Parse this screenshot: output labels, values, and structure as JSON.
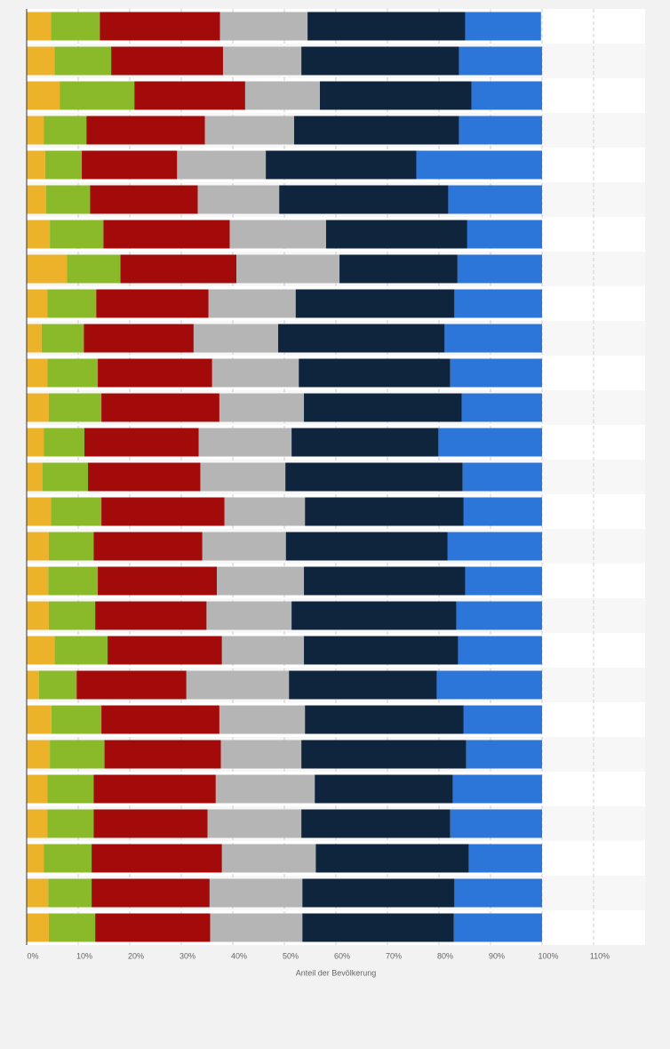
{
  "chart_data": {
    "type": "stacked-bar-horizontal",
    "x_label": "Anteil der Bevölkerung",
    "categories": [
      null,
      null,
      null,
      null,
      null,
      null,
      null,
      null,
      null,
      null,
      null,
      null,
      null,
      null,
      null,
      null,
      null,
      null,
      null,
      null,
      null,
      null,
      null,
      null,
      null,
      null,
      null
    ],
    "xlim": [
      0,
      120
    ],
    "xticks": [
      {
        "value": 0,
        "label": "0%"
      },
      {
        "value": 10,
        "label": "10%"
      },
      {
        "value": 20,
        "label": "20%"
      },
      {
        "value": 30,
        "label": "30%"
      },
      {
        "value": 40,
        "label": "40%"
      },
      {
        "value": 50,
        "label": "50%"
      },
      {
        "value": 60,
        "label": "60%"
      },
      {
        "value": 70,
        "label": "70%"
      },
      {
        "value": 80,
        "label": "80%"
      },
      {
        "value": 90,
        "label": "90%"
      },
      {
        "value": 100,
        "label": "100%"
      },
      {
        "value": 110,
        "label": "110%"
      }
    ],
    "grid": true,
    "series": [
      {
        "color": "#ecb32a",
        "values": [
          4.7,
          5.4,
          6.4,
          3.3,
          3.6,
          3.8,
          4.5,
          7.8,
          4.0,
          2.9,
          4.0,
          4.3,
          3.3,
          3.1,
          4.7,
          4.3,
          4.2,
          4.3,
          5.4,
          2.4,
          4.8,
          4.5,
          4.0,
          4.0,
          3.3,
          4.2,
          4.3
        ]
      },
      {
        "color": "#8aba2a",
        "values": [
          9.5,
          11.0,
          14.5,
          8.3,
          7.1,
          8.5,
          10.4,
          10.4,
          9.5,
          8.2,
          9.8,
          10.2,
          7.9,
          8.8,
          9.8,
          8.7,
          9.6,
          9.0,
          10.3,
          7.3,
          9.7,
          10.6,
          9.0,
          9.0,
          9.3,
          8.4,
          9.0
        ]
      },
      {
        "color": "#a30b0b",
        "values": [
          23.3,
          21.7,
          21.5,
          23.0,
          18.5,
          20.9,
          24.5,
          22.5,
          21.8,
          21.3,
          22.2,
          22.9,
          22.2,
          21.8,
          23.9,
          21.1,
          23.1,
          21.6,
          22.2,
          21.3,
          22.9,
          22.6,
          23.7,
          22.1,
          25.3,
          22.9,
          22.3
        ]
      },
      {
        "color": "#b5b5b5",
        "values": [
          17.0,
          15.2,
          14.5,
          17.3,
          17.2,
          15.8,
          18.7,
          20.0,
          16.9,
          16.4,
          16.8,
          16.4,
          18.0,
          16.5,
          15.6,
          16.2,
          16.9,
          16.5,
          15.9,
          19.9,
          16.6,
          15.6,
          19.2,
          18.2,
          18.2,
          18.0,
          17.9
        ]
      },
      {
        "color": "#0f253d",
        "values": [
          30.6,
          30.6,
          29.4,
          32.0,
          29.2,
          32.8,
          27.4,
          22.9,
          30.8,
          32.3,
          29.4,
          30.6,
          28.5,
          34.4,
          30.8,
          31.4,
          31.3,
          32.0,
          29.9,
          28.7,
          30.8,
          32.0,
          26.8,
          28.9,
          29.7,
          29.5,
          29.4
        ]
      },
      {
        "color": "#2d76d9",
        "values": [
          14.7,
          16.1,
          13.7,
          16.1,
          24.4,
          18.2,
          14.5,
          16.4,
          17.0,
          18.9,
          17.8,
          15.6,
          20.1,
          15.4,
          15.2,
          18.3,
          14.9,
          16.6,
          16.3,
          20.4,
          15.2,
          14.7,
          17.3,
          17.8,
          14.2,
          17.0,
          17.1
        ]
      }
    ]
  }
}
